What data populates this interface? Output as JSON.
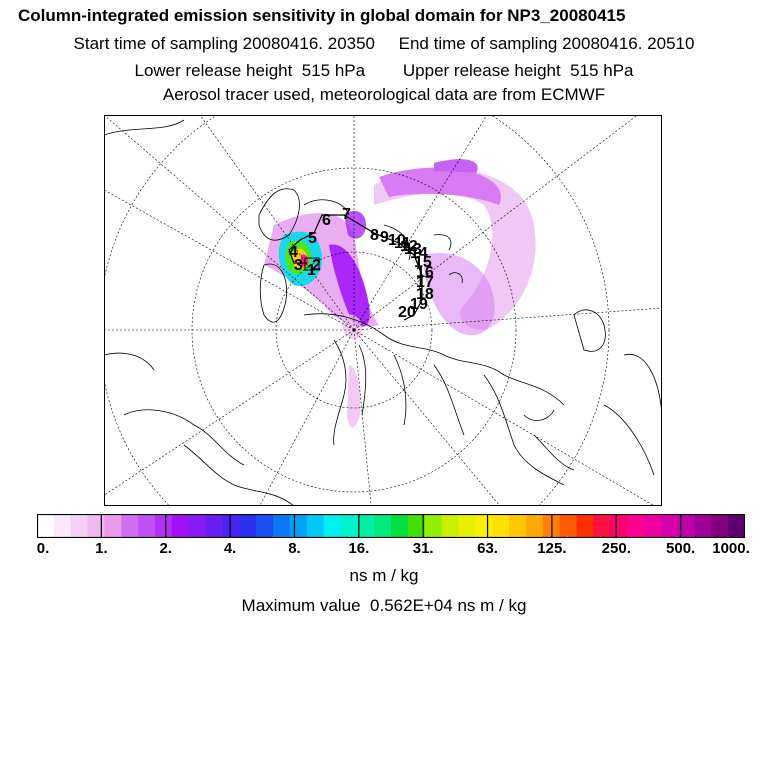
{
  "header": {
    "title": "Column-integrated emission sensitivity in global domain for NP3_20080415",
    "sampling": "Start time of sampling 20080416. 20350     End time of sampling 20080416. 20510",
    "release": "Lower release height  515 hPa        Upper release height  515 hPa",
    "source": "Aerosol tracer used, meteorological data are from ECMWF"
  },
  "map": {
    "track_labels": [
      "1",
      "2",
      "3",
      "4",
      "5",
      "6",
      "7",
      "8",
      "9",
      "10",
      "11",
      "12",
      "13",
      "14",
      "15",
      "16",
      "17",
      "18",
      "19",
      "20"
    ]
  },
  "colorbar": {
    "ticks": [
      "0.",
      "1.",
      "2.",
      "4.",
      "8.",
      "16.",
      "31.",
      "63.",
      "125.",
      "250.",
      "500.",
      "1000."
    ],
    "unit": "ns m / kg",
    "max_value": "Maximum value  0.562E+04 ns m / kg",
    "colors": [
      "#ffffff",
      "#fbe8fb",
      "#f6d0f6",
      "#f0b8f0",
      "#ea9aea",
      "#d070f0",
      "#c050f4",
      "#b030f6",
      "#a010f8",
      "#8a1af4",
      "#6a1ef4",
      "#4a22f2",
      "#2a30f0",
      "#1a50f2",
      "#0a78f4",
      "#00a0f6",
      "#00c8f8",
      "#00f0f0",
      "#00f0d0",
      "#00f0a8",
      "#00e880",
      "#00e040",
      "#40e000",
      "#90f000",
      "#c8f000",
      "#e8f000",
      "#f8f000",
      "#ffe000",
      "#ffc800",
      "#ffaa00",
      "#ff8000",
      "#ff5a00",
      "#ff3000",
      "#ff1040",
      "#ff0070",
      "#ff0090",
      "#f000a0",
      "#d800a8",
      "#c000a8",
      "#a00098",
      "#800080",
      "#600070"
    ]
  }
}
